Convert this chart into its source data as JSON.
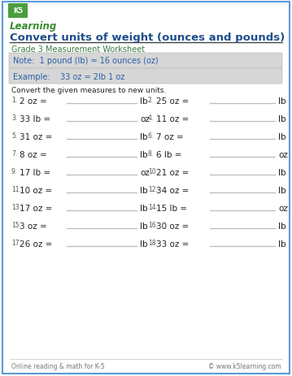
{
  "title": "Convert units of weight (ounces and pounds)",
  "subtitle": "Grade 3 Measurement Worksheet",
  "note": "Note:  1 pound (lb) = 16 ounces (oz)",
  "example": "Example:    33 oz = 2lb 1 oz",
  "instruction": "Convert the given measures to new units.",
  "problems": [
    {
      "num": "1.",
      "question": "2 oz =",
      "unit": "lb"
    },
    {
      "num": "2.",
      "question": "25 oz =",
      "unit": "lb"
    },
    {
      "num": "3.",
      "question": "33 lb =",
      "unit": "oz"
    },
    {
      "num": "4.",
      "question": "11 oz =",
      "unit": "lb"
    },
    {
      "num": "5.",
      "question": "31 oz =",
      "unit": "lb"
    },
    {
      "num": "6.",
      "question": "7 oz =",
      "unit": "lb"
    },
    {
      "num": "7.",
      "question": "8 oz =",
      "unit": "lb"
    },
    {
      "num": "8.",
      "question": "6 lb =",
      "unit": "oz"
    },
    {
      "num": "9.",
      "question": "17 lb =",
      "unit": "oz"
    },
    {
      "num": "10.",
      "question": "21 oz =",
      "unit": "lb"
    },
    {
      "num": "11.",
      "question": "10 oz =",
      "unit": "lb"
    },
    {
      "num": "12.",
      "question": "34 oz =",
      "unit": "lb"
    },
    {
      "num": "13.",
      "question": "17 oz =",
      "unit": "lb"
    },
    {
      "num": "14.",
      "question": "15 lb =",
      "unit": "oz"
    },
    {
      "num": "15.",
      "question": "3 oz =",
      "unit": "lb"
    },
    {
      "num": "16.",
      "question": "30 oz =",
      "unit": "lb"
    },
    {
      "num": "17.",
      "question": "26 oz =",
      "unit": "lb"
    },
    {
      "num": "18.",
      "question": "33 oz =",
      "unit": "lb"
    }
  ],
  "footer_left": "Online reading & math for K-5",
  "footer_right": "© www.k5learning.com",
  "border_color": "#5b9bd5",
  "title_color": "#1f4e8c",
  "subtitle_color": "#3a7d44",
  "note_bg": "#d6d6d6",
  "note_color": "#2a5ea8",
  "problem_color": "#222222",
  "num_color": "#555555",
  "footer_color": "#777777",
  "bg_color": "#ffffff",
  "line_color": "#bbbbbb"
}
